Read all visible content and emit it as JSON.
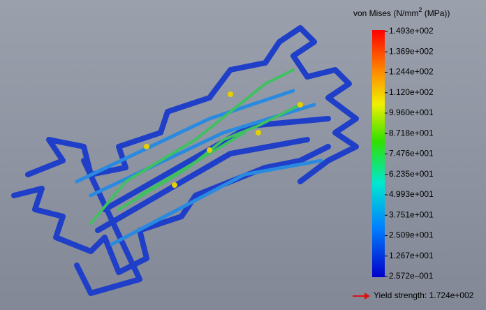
{
  "legend": {
    "title": {
      "text": "von Mises (N/mm",
      "superscript": "2",
      "suffix": " (MPa))"
    },
    "ticks": [
      "1.493e+002",
      "1.369e+002",
      "1.244e+002",
      "1.120e+002",
      "9.960e+001",
      "8.718e+001",
      "7.476e+001",
      "6.235e+001",
      "4.993e+001",
      "3.751e+001",
      "2.509e+001",
      "1.267e+001",
      "2.572e–001"
    ],
    "yield": "Yield strength: 1.724e+002"
  }
}
